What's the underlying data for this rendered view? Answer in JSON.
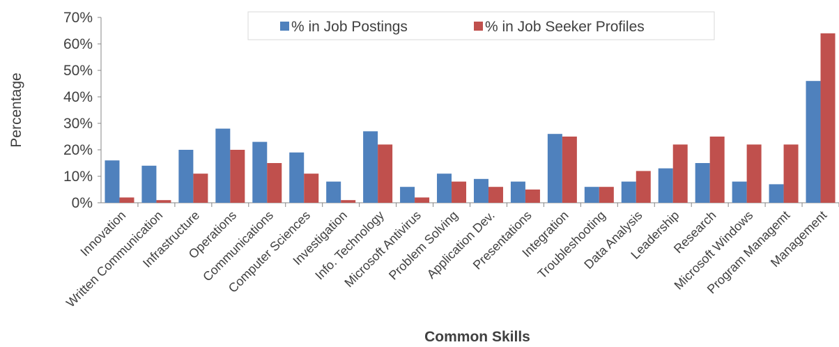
{
  "chart_data": {
    "type": "bar",
    "categories": [
      "Innovation",
      "Written Communication",
      "Infrastructure",
      "Operations",
      "Communications",
      "Computer Sciences",
      "Investigation",
      "Info. Technology",
      "Microsoft Antivirus",
      "Problem Solving",
      "Application Dev.",
      "Presentations",
      "Integration",
      "Troubleshooting",
      "Data Analysis",
      "Leadership",
      "Research",
      "Microsoft Windows",
      "Program Managemt",
      "Management"
    ],
    "series": [
      {
        "name": "% in Job Postings",
        "color": "#4F81BD",
        "values": [
          16,
          14,
          20,
          28,
          23,
          19,
          8,
          27,
          6,
          11,
          9,
          8,
          26,
          6,
          8,
          13,
          15,
          8,
          7,
          46
        ]
      },
      {
        "name": "% in Job Seeker Profiles",
        "color": "#C0504D",
        "values": [
          2,
          1,
          11,
          20,
          15,
          11,
          1,
          22,
          2,
          8,
          6,
          5,
          25,
          6,
          12,
          22,
          25,
          22,
          22,
          64
        ]
      }
    ],
    "xlabel": "Common Skills",
    "ylabel": "Percentage",
    "ylim": [
      0,
      70
    ],
    "yticks": [
      "0%",
      "10%",
      "20%",
      "30%",
      "40%",
      "50%",
      "60%",
      "70%"
    ],
    "grid": false,
    "legend_position": "top"
  }
}
